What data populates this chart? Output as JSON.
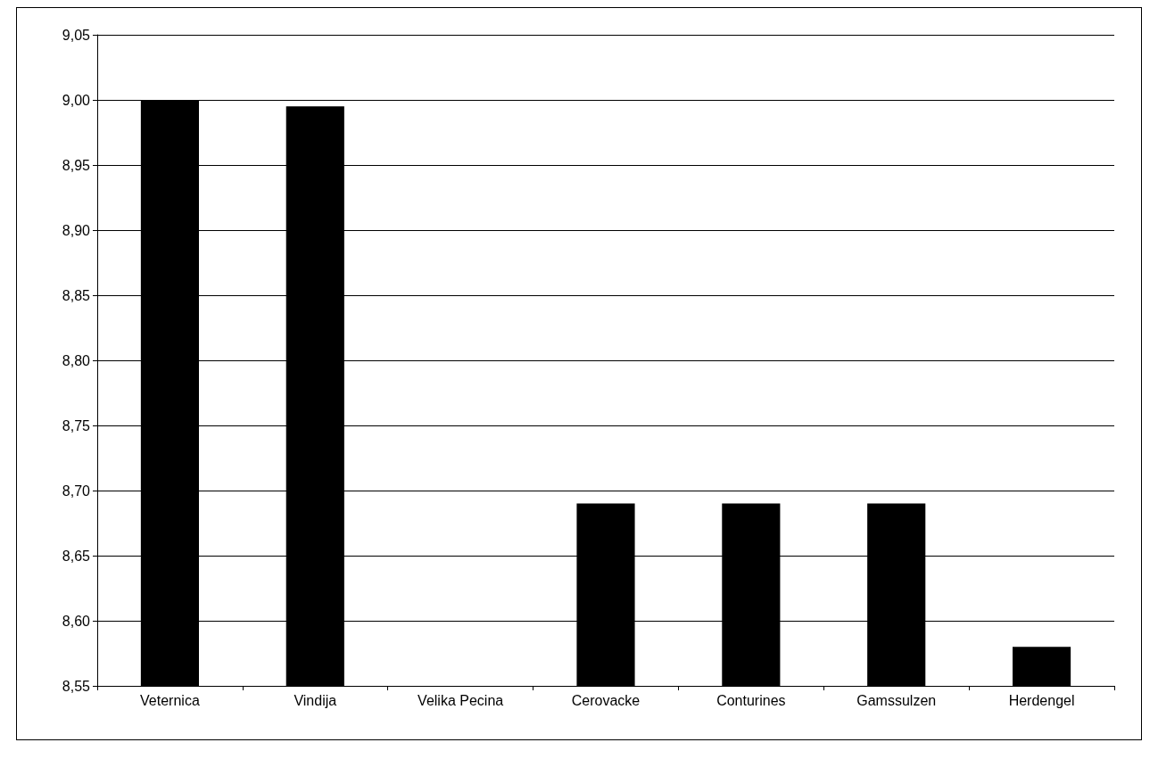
{
  "chart_data": {
    "type": "bar",
    "categories": [
      "Veternica",
      "Vindija",
      "Velika Pecina",
      "Cerovacke",
      "Conturines",
      "Gamssulzen",
      "Herdengel"
    ],
    "values": [
      9.0,
      8.995,
      null,
      8.69,
      8.69,
      8.69,
      8.58
    ],
    "color": "#000000",
    "ylim": [
      8.55,
      9.05
    ],
    "yticks": [
      {
        "value": 8.55,
        "label": "8,55"
      },
      {
        "value": 8.6,
        "label": "8,60"
      },
      {
        "value": 8.65,
        "label": "8,65"
      },
      {
        "value": 8.7,
        "label": "8,70"
      },
      {
        "value": 8.75,
        "label": "8,75"
      },
      {
        "value": 8.8,
        "label": "8,80"
      },
      {
        "value": 8.85,
        "label": "8,85"
      },
      {
        "value": 8.9,
        "label": "8,90"
      },
      {
        "value": 8.95,
        "label": "8,95"
      },
      {
        "value": 9.0,
        "label": "9,00"
      },
      {
        "value": 9.05,
        "label": "9,05"
      }
    ],
    "grid": "y"
  }
}
